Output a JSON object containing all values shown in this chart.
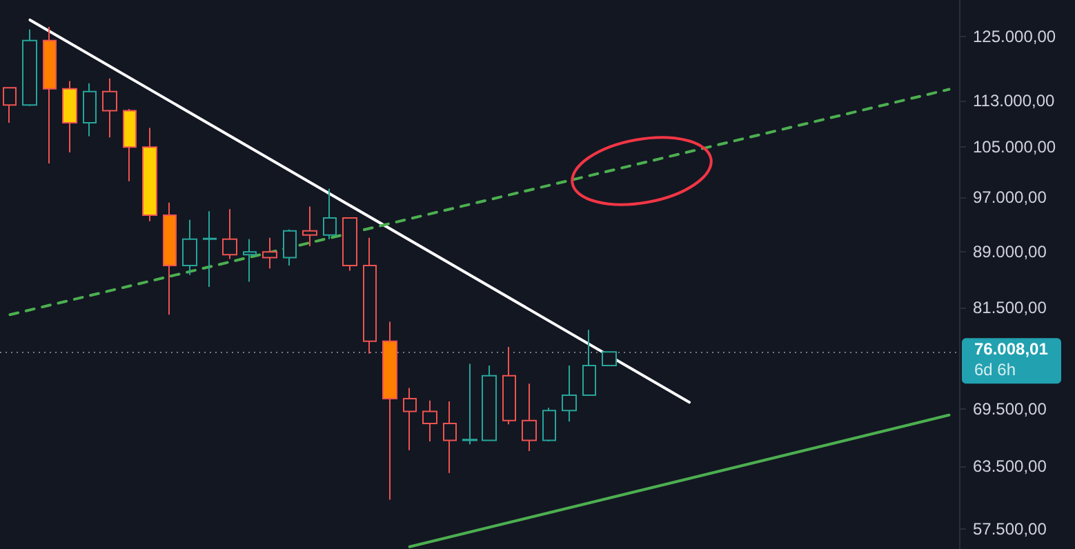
{
  "chart_data": {
    "type": "candlestick",
    "categories": [
      null,
      null,
      null,
      null,
      null,
      null,
      null,
      null,
      null,
      null,
      null,
      null,
      null,
      null,
      null,
      null,
      null,
      null,
      null,
      null,
      null,
      null,
      null,
      null,
      null,
      null,
      null,
      null,
      null,
      null,
      null,
      null,
      null,
      null,
      null,
      null,
      null,
      null,
      null,
      null,
      null,
      null,
      null,
      null,
      null,
      null,
      null,
      null
    ],
    "ohlc": [
      [
        115300,
        115300,
        109100,
        112200
      ],
      [
        112200,
        126400,
        112000,
        124200
      ],
      [
        124200,
        126900,
        102300,
        115100
      ],
      [
        115100,
        116500,
        104100,
        109100
      ],
      [
        109100,
        116100,
        106800,
        114600
      ],
      [
        114600,
        117000,
        106600,
        111200
      ],
      [
        111200,
        111500,
        99500,
        105000
      ],
      [
        105000,
        108200,
        93400,
        94300
      ],
      [
        94300,
        96200,
        80600,
        87100
      ],
      [
        87100,
        93600,
        85800,
        90800
      ],
      [
        90800,
        94900,
        84200,
        90900
      ],
      [
        90800,
        95200,
        88000,
        88600
      ],
      [
        88600,
        90800,
        84900,
        89000
      ],
      [
        89000,
        91000,
        86700,
        88200
      ],
      [
        88200,
        92200,
        87100,
        92000
      ],
      [
        92000,
        95600,
        89800,
        91400
      ],
      [
        91400,
        98300,
        90800,
        93900
      ],
      [
        93900,
        93900,
        86400,
        87100
      ],
      [
        87100,
        91000,
        75800,
        77300
      ],
      [
        77300,
        79700,
        60200,
        70600
      ],
      [
        70600,
        71800,
        65100,
        69200
      ],
      [
        69200,
        70400,
        66000,
        67900
      ],
      [
        67900,
        70300,
        62800,
        66100
      ],
      [
        66100,
        74600,
        65700,
        66200
      ],
      [
        66100,
        74400,
        66100,
        73200
      ],
      [
        73200,
        76600,
        67800,
        68200
      ],
      [
        68200,
        72300,
        65000,
        66100
      ],
      [
        66100,
        69600,
        66000,
        69300
      ],
      [
        69300,
        74400,
        68100,
        71000
      ],
      [
        71000,
        78700,
        71000,
        74400
      ],
      [
        74400,
        76008.01,
        74400,
        76008.01
      ],
      null,
      null,
      null,
      null,
      null,
      null,
      null,
      null,
      null,
      null,
      null,
      null,
      null,
      null,
      null,
      null,
      null
    ],
    "colors": [
      "#ef5350",
      "#26a69a",
      "#ff7f00",
      "#ffd000",
      "#26a69a",
      "#ef5350",
      "#ffd000",
      "#ffd000",
      "#ff7f00",
      "#26a69a",
      "#26a69a",
      "#ef5350",
      "#26a69a",
      "#ef5350",
      "#26a69a",
      "#ef5350",
      "#26a69a",
      "#ef5350",
      "#ef5350",
      "#ff7f00",
      "#ef5350",
      "#ef5350",
      "#ef5350",
      "#26a69a",
      "#26a69a",
      "#ef5350",
      "#ef5350",
      "#26a69a",
      "#26a69a",
      "#26a69a",
      "#26a69a",
      null,
      null,
      null,
      null,
      null,
      null,
      null,
      null,
      null,
      null,
      null,
      null,
      null,
      null,
      null,
      null,
      null
    ],
    "series": [
      {
        "type": "line",
        "color": "#ffffff",
        "line_style": "solid",
        "values": [
          null,
          128300,
          null,
          null,
          null,
          null,
          null,
          null,
          null,
          null,
          null,
          null,
          null,
          null,
          null,
          null,
          null,
          null,
          null,
          null,
          null,
          null,
          null,
          null,
          null,
          null,
          null,
          null,
          null,
          null,
          null,
          null,
          null,
          null,
          70200,
          null,
          null,
          null,
          null,
          null,
          null,
          null,
          null,
          null,
          null,
          null,
          null,
          null
        ]
      },
      {
        "type": "line",
        "color": "#4caf50",
        "line_style": "dashed",
        "values": [
          80600,
          null,
          null,
          null,
          null,
          null,
          null,
          null,
          null,
          null,
          null,
          null,
          null,
          null,
          null,
          null,
          null,
          null,
          null,
          null,
          null,
          null,
          null,
          null,
          null,
          null,
          null,
          null,
          null,
          null,
          null,
          null,
          null,
          null,
          null,
          null,
          null,
          null,
          null,
          null,
          null,
          null,
          null,
          null,
          null,
          null,
          null,
          115000
        ]
      },
      {
        "type": "line",
        "color": "#4caf50",
        "line_style": "solid",
        "values": [
          null,
          null,
          null,
          null,
          null,
          null,
          null,
          null,
          null,
          null,
          null,
          null,
          null,
          null,
          null,
          null,
          null,
          null,
          null,
          null,
          55900,
          null,
          null,
          null,
          null,
          null,
          null,
          null,
          null,
          null,
          null,
          null,
          null,
          null,
          null,
          null,
          null,
          null,
          null,
          null,
          null,
          null,
          null,
          null,
          null,
          null,
          null,
          68800
        ]
      }
    ],
    "log": "y",
    "ylim": [
      55700,
      132400
    ],
    "yticks": [
      {
        "value": 125000,
        "label": "125.000,00"
      },
      {
        "value": 113000,
        "label": "113.000,00"
      },
      {
        "value": 105000,
        "label": "105.000,00"
      },
      {
        "value": 97000,
        "label": "97.000,00"
      },
      {
        "value": 89000,
        "label": "89.000,00"
      },
      {
        "value": 81500,
        "label": "81.500,00"
      },
      {
        "value": 69500,
        "label": "69.500,00"
      },
      {
        "value": 63500,
        "label": "63.500,00"
      },
      {
        "value": 57500,
        "label": "57.500,00"
      }
    ],
    "tick_labels": "y",
    "ref_lines": [
      {
        "axis": "y",
        "value": 76008.01,
        "label": "76.008,01",
        "color": "#787b86",
        "line_style": "dotted"
      }
    ],
    "annotations": [
      "6d 6h"
    ]
  }
}
